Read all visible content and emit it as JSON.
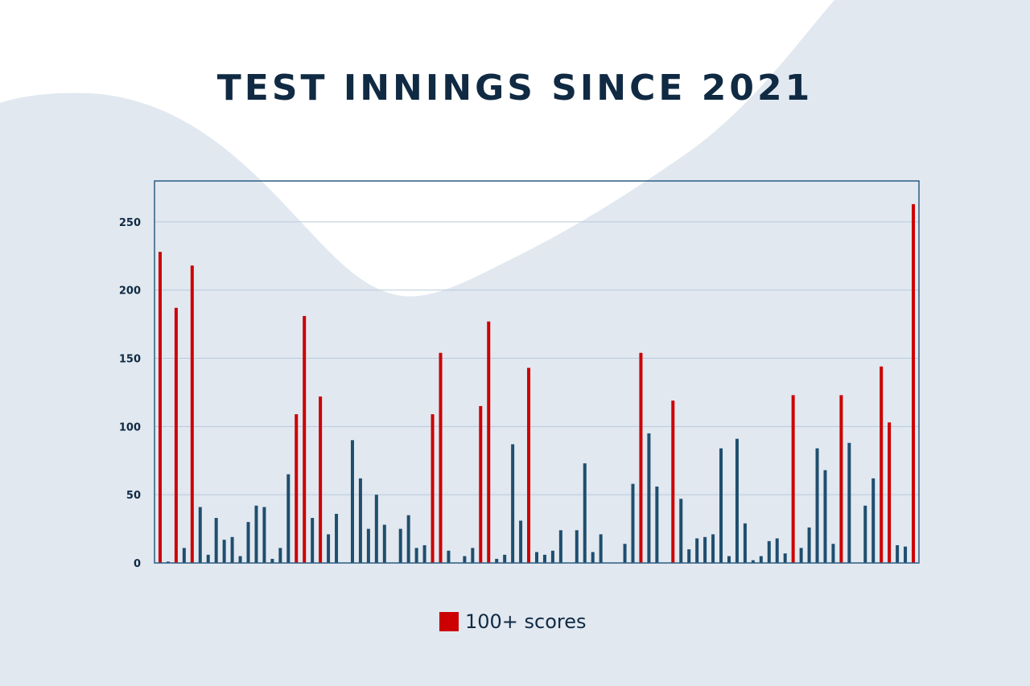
{
  "chart_data": {
    "type": "bar",
    "title": "TEST INNINGS SINCE 2021",
    "xlabel": "",
    "ylabel": "",
    "ylim": [
      0,
      280
    ],
    "yticks": [
      0,
      50,
      100,
      150,
      200,
      250
    ],
    "grid": true,
    "legend": {
      "label": "100+ scores",
      "color": "#cc0000",
      "placement": "bottom-center"
    },
    "colors": {
      "century": "#cc0000",
      "normal": "#1f4e6e",
      "frame": "#2e5c80",
      "grid": "#b8c9dc",
      "background": "#e1e8f0",
      "title": "#102a43"
    },
    "values": [
      228,
      1,
      187,
      11,
      218,
      41,
      6,
      33,
      17,
      19,
      5,
      30,
      42,
      41,
      3,
      11,
      65,
      109,
      181,
      33,
      122,
      21,
      36,
      0,
      90,
      62,
      25,
      50,
      28,
      0,
      25,
      35,
      11,
      13,
      109,
      154,
      9,
      0,
      5,
      11,
      115,
      177,
      3,
      6,
      87,
      31,
      143,
      8,
      6,
      9,
      24,
      0,
      24,
      73,
      8,
      21,
      0,
      0,
      14,
      58,
      154,
      95,
      56,
      0,
      119,
      47,
      10,
      18,
      19,
      21,
      84,
      5,
      91,
      29,
      2,
      5,
      16,
      18,
      7,
      123,
      11,
      26,
      84,
      68,
      14,
      123,
      88,
      0,
      42,
      62,
      144,
      103,
      13,
      12,
      263
    ]
  }
}
